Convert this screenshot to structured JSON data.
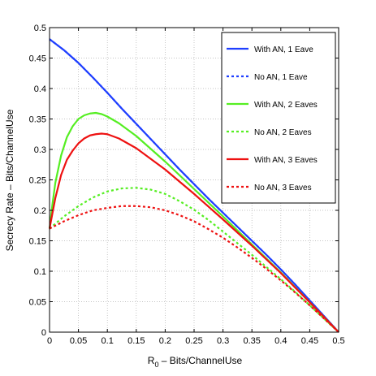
{
  "chart_data": {
    "type": "line",
    "title": "",
    "xlabel_main": "R",
    "xlabel_sub": "0",
    "xlabel_rest": " – Bits/ChannelUse",
    "ylabel": "Secrecy Rate – Bits/ChannelUse",
    "xlim": [
      0,
      0.5
    ],
    "ylim": [
      0,
      0.5
    ],
    "xticks": [
      "0",
      "0.05",
      "0.1",
      "0.15",
      "0.2",
      "0.25",
      "0.3",
      "0.35",
      "0.4",
      "0.45",
      "0.5"
    ],
    "yticks": [
      "0",
      "0.05",
      "0.1",
      "0.15",
      "0.2",
      "0.25",
      "0.3",
      "0.35",
      "0.4",
      "0.45",
      "0.5"
    ],
    "grid": true,
    "legend_position": "top-right",
    "series": [
      {
        "name": "With AN, 1 Eave",
        "color": "#1f3fff",
        "dash": "solid",
        "x": [
          0,
          0.025,
          0.05,
          0.075,
          0.1,
          0.125,
          0.15,
          0.175,
          0.2,
          0.225,
          0.25,
          0.275,
          0.3,
          0.325,
          0.35,
          0.375,
          0.4,
          0.425,
          0.45,
          0.475,
          0.5
        ],
        "y": [
          0.481,
          0.463,
          0.442,
          0.418,
          0.393,
          0.367,
          0.342,
          0.317,
          0.292,
          0.267,
          0.243,
          0.219,
          0.196,
          0.173,
          0.15,
          0.127,
          0.103,
          0.078,
          0.052,
          0.026,
          0
        ]
      },
      {
        "name": "No AN, 1 Eave",
        "color": "#1f3fff",
        "dash": "dotted",
        "x": [
          0,
          0.025,
          0.05,
          0.075,
          0.1,
          0.125,
          0.15,
          0.175,
          0.2,
          0.225,
          0.25,
          0.275,
          0.3,
          0.325,
          0.35,
          0.375,
          0.4,
          0.425,
          0.45,
          0.475,
          0.5
        ],
        "y": [
          0.481,
          0.463,
          0.442,
          0.418,
          0.393,
          0.367,
          0.342,
          0.317,
          0.292,
          0.267,
          0.243,
          0.219,
          0.196,
          0.173,
          0.15,
          0.127,
          0.103,
          0.078,
          0.052,
          0.026,
          0
        ]
      },
      {
        "name": "With AN, 2 Eaves",
        "color": "#55ee22",
        "dash": "solid",
        "x": [
          0,
          0.005,
          0.01,
          0.02,
          0.03,
          0.04,
          0.05,
          0.06,
          0.07,
          0.08,
          0.09,
          0.1,
          0.12,
          0.15,
          0.2,
          0.25,
          0.3,
          0.35,
          0.4,
          0.45,
          0.5
        ],
        "y": [
          0.17,
          0.21,
          0.245,
          0.29,
          0.32,
          0.338,
          0.35,
          0.356,
          0.359,
          0.36,
          0.358,
          0.354,
          0.343,
          0.322,
          0.28,
          0.235,
          0.19,
          0.144,
          0.098,
          0.049,
          0
        ]
      },
      {
        "name": "No AN, 2 Eaves",
        "color": "#55ee22",
        "dash": "dotted",
        "x": [
          0,
          0.025,
          0.05,
          0.075,
          0.1,
          0.125,
          0.15,
          0.175,
          0.2,
          0.225,
          0.25,
          0.275,
          0.3,
          0.325,
          0.35,
          0.375,
          0.4,
          0.425,
          0.45,
          0.475,
          0.5
        ],
        "y": [
          0.17,
          0.19,
          0.207,
          0.221,
          0.231,
          0.236,
          0.237,
          0.234,
          0.227,
          0.215,
          0.201,
          0.184,
          0.165,
          0.146,
          0.127,
          0.107,
          0.087,
          0.066,
          0.044,
          0.022,
          0
        ]
      },
      {
        "name": "With AN, 3 Eaves",
        "color": "#ee1111",
        "dash": "solid",
        "x": [
          0,
          0.005,
          0.01,
          0.02,
          0.03,
          0.04,
          0.05,
          0.06,
          0.07,
          0.08,
          0.09,
          0.1,
          0.12,
          0.15,
          0.2,
          0.25,
          0.3,
          0.35,
          0.4,
          0.45,
          0.5
        ],
        "y": [
          0.17,
          0.195,
          0.22,
          0.258,
          0.283,
          0.298,
          0.31,
          0.318,
          0.323,
          0.325,
          0.326,
          0.325,
          0.318,
          0.302,
          0.267,
          0.227,
          0.185,
          0.142,
          0.097,
          0.049,
          0
        ]
      },
      {
        "name": "No AN, 3 Eaves",
        "color": "#ee1111",
        "dash": "dotted",
        "x": [
          0,
          0.025,
          0.05,
          0.075,
          0.1,
          0.125,
          0.15,
          0.175,
          0.2,
          0.225,
          0.25,
          0.275,
          0.3,
          0.325,
          0.35,
          0.375,
          0.4,
          0.425,
          0.45,
          0.475,
          0.5
        ],
        "y": [
          0.17,
          0.182,
          0.192,
          0.2,
          0.204,
          0.207,
          0.207,
          0.205,
          0.2,
          0.192,
          0.182,
          0.169,
          0.155,
          0.139,
          0.122,
          0.104,
          0.085,
          0.065,
          0.044,
          0.022,
          0
        ]
      }
    ]
  }
}
